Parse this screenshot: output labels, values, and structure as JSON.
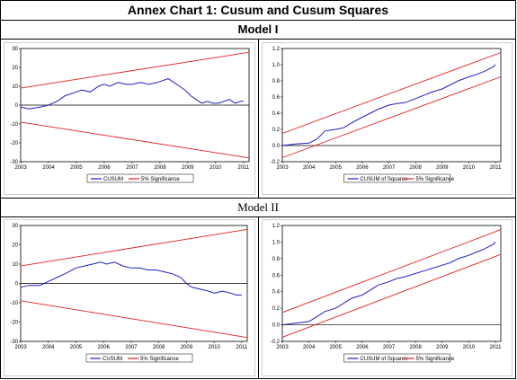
{
  "header": {
    "title": "Annex Chart 1: Cusum and Cusum Squares",
    "model1_label": "Model I",
    "model2_label": "Model II"
  },
  "colors": {
    "series": "#1f1fbf",
    "bounds": "#e02020",
    "zero": "#000000"
  },
  "chart_data": [
    {
      "type": "line",
      "panel": "model1-cusum",
      "x_ticks": [
        "2003",
        "2004",
        "2005",
        "2006",
        "2007",
        "2008",
        "2009",
        "2010",
        "2011"
      ],
      "y_ticks": [
        "30",
        "20",
        "10",
        "0",
        "-10",
        "-20",
        "-30"
      ],
      "ylim": [
        -30,
        30
      ],
      "xlim": [
        2003,
        2011.2
      ],
      "legend": [
        "CUSUM",
        "5% Significance"
      ],
      "series": [
        {
          "name": "CUSUM",
          "x": [
            2003.0,
            2003.3,
            2003.7,
            2004.0,
            2004.3,
            2004.6,
            2005.0,
            2005.2,
            2005.5,
            2005.8,
            2006.0,
            2006.2,
            2006.5,
            2006.8,
            2007.0,
            2007.3,
            2007.6,
            2007.9,
            2008.1,
            2008.3,
            2008.5,
            2008.7,
            2008.9,
            2009.1,
            2009.3,
            2009.5,
            2009.7,
            2009.9,
            2010.1,
            2010.3,
            2010.5,
            2010.7,
            2010.9,
            2011.0
          ],
          "y": [
            -1,
            -2,
            -1,
            0,
            2,
            5,
            7,
            8,
            7,
            10,
            11,
            10,
            12,
            11,
            11,
            12,
            11,
            12,
            13,
            14,
            12,
            10,
            8,
            5,
            3,
            1,
            2,
            1,
            1,
            2,
            3,
            1,
            2,
            2
          ]
        },
        {
          "name": "5% Significance",
          "x": [
            2003,
            2011.2
          ],
          "y": [
            9,
            28
          ]
        },
        {
          "name": "5% Significance",
          "x": [
            2003,
            2011.2
          ],
          "y": [
            -9,
            -28
          ]
        }
      ]
    },
    {
      "type": "line",
      "panel": "model1-cusumsq",
      "x_ticks": [
        "2003",
        "2004",
        "2005",
        "2006",
        "2007",
        "2008",
        "2009",
        "2010",
        "2011"
      ],
      "y_ticks": [
        "1.2",
        "1.0",
        "0.8",
        "0.6",
        "0.4",
        "0.2",
        "0.0",
        "-0.2"
      ],
      "ylim": [
        -0.2,
        1.2
      ],
      "xlim": [
        2003,
        2011.2
      ],
      "legend": [
        "CUSUM of Squares",
        "5% Significance"
      ],
      "series": [
        {
          "name": "CUSUM of Squares",
          "x": [
            2003.0,
            2003.5,
            2004.0,
            2004.3,
            2004.6,
            2005.0,
            2005.3,
            2005.6,
            2006.0,
            2006.3,
            2006.6,
            2007.0,
            2007.3,
            2007.6,
            2008.0,
            2008.3,
            2008.6,
            2009.0,
            2009.3,
            2009.6,
            2010.0,
            2010.3,
            2010.6,
            2010.9,
            2011.0
          ],
          "y": [
            0.0,
            0.02,
            0.03,
            0.08,
            0.18,
            0.2,
            0.22,
            0.28,
            0.35,
            0.4,
            0.45,
            0.5,
            0.52,
            0.53,
            0.58,
            0.62,
            0.66,
            0.7,
            0.75,
            0.8,
            0.85,
            0.88,
            0.92,
            0.97,
            1.0
          ]
        },
        {
          "name": "5% Significance",
          "x": [
            2003,
            2011.2
          ],
          "y": [
            0.15,
            1.15
          ]
        },
        {
          "name": "5% Significance",
          "x": [
            2003,
            2011.2
          ],
          "y": [
            -0.15,
            0.85
          ]
        }
      ]
    },
    {
      "type": "line",
      "panel": "model2-cusum",
      "x_ticks": [
        "2003",
        "2004",
        "2005",
        "2006",
        "2007",
        "2008",
        "2009",
        "2010",
        "2011"
      ],
      "y_ticks": [
        "30",
        "20",
        "10",
        "0",
        "-10",
        "-20",
        "-30"
      ],
      "ylim": [
        -30,
        30
      ],
      "xlim": [
        2003,
        2011.2
      ],
      "legend": [
        "CUSUM",
        "5% Significance"
      ],
      "series": [
        {
          "name": "CUSUM",
          "x": [
            2003.0,
            2003.3,
            2003.7,
            2004.0,
            2004.3,
            2004.6,
            2005.0,
            2005.3,
            2005.6,
            2005.9,
            2006.1,
            2006.4,
            2006.7,
            2007.0,
            2007.3,
            2007.6,
            2007.9,
            2008.2,
            2008.5,
            2008.8,
            2009.0,
            2009.2,
            2009.5,
            2009.8,
            2010.0,
            2010.3,
            2010.6,
            2010.8,
            2011.0
          ],
          "y": [
            -2,
            -1,
            -1,
            1,
            3,
            5,
            8,
            9,
            10,
            11,
            10,
            11,
            9,
            8,
            8,
            7,
            7,
            6,
            5,
            3,
            0,
            -2,
            -3,
            -4,
            -5,
            -4,
            -5,
            -6,
            -6
          ]
        },
        {
          "name": "5% Significance",
          "x": [
            2003,
            2011.2
          ],
          "y": [
            9,
            28
          ]
        },
        {
          "name": "5% Significance",
          "x": [
            2003,
            2011.2
          ],
          "y": [
            -9,
            -28
          ]
        }
      ]
    },
    {
      "type": "line",
      "panel": "model2-cusumsq",
      "x_ticks": [
        "2003",
        "2004",
        "2005",
        "2006",
        "2007",
        "2008",
        "2009",
        "2010",
        "2011"
      ],
      "y_ticks": [
        "1.2",
        "1.0",
        "0.8",
        "0.6",
        "0.4",
        "0.2",
        "0.0",
        "-0.2"
      ],
      "ylim": [
        -0.2,
        1.2
      ],
      "xlim": [
        2003,
        2011.2
      ],
      "legend": [
        "CUSUM of Squares",
        "5% Significance"
      ],
      "series": [
        {
          "name": "CUSUM of Squares",
          "x": [
            2003.0,
            2003.5,
            2004.0,
            2004.3,
            2004.6,
            2005.0,
            2005.3,
            2005.6,
            2006.0,
            2006.3,
            2006.6,
            2007.0,
            2007.3,
            2007.6,
            2008.0,
            2008.3,
            2008.6,
            2009.0,
            2009.3,
            2009.6,
            2010.0,
            2010.3,
            2010.6,
            2010.9,
            2011.0
          ],
          "y": [
            0.0,
            0.02,
            0.04,
            0.1,
            0.16,
            0.2,
            0.26,
            0.32,
            0.36,
            0.42,
            0.48,
            0.52,
            0.56,
            0.58,
            0.62,
            0.65,
            0.68,
            0.72,
            0.75,
            0.8,
            0.84,
            0.88,
            0.92,
            0.97,
            1.0
          ]
        },
        {
          "name": "5% Significance",
          "x": [
            2003,
            2011.2
          ],
          "y": [
            0.15,
            1.15
          ]
        },
        {
          "name": "5% Significance",
          "x": [
            2003,
            2011.2
          ],
          "y": [
            -0.15,
            0.85
          ]
        }
      ]
    }
  ]
}
